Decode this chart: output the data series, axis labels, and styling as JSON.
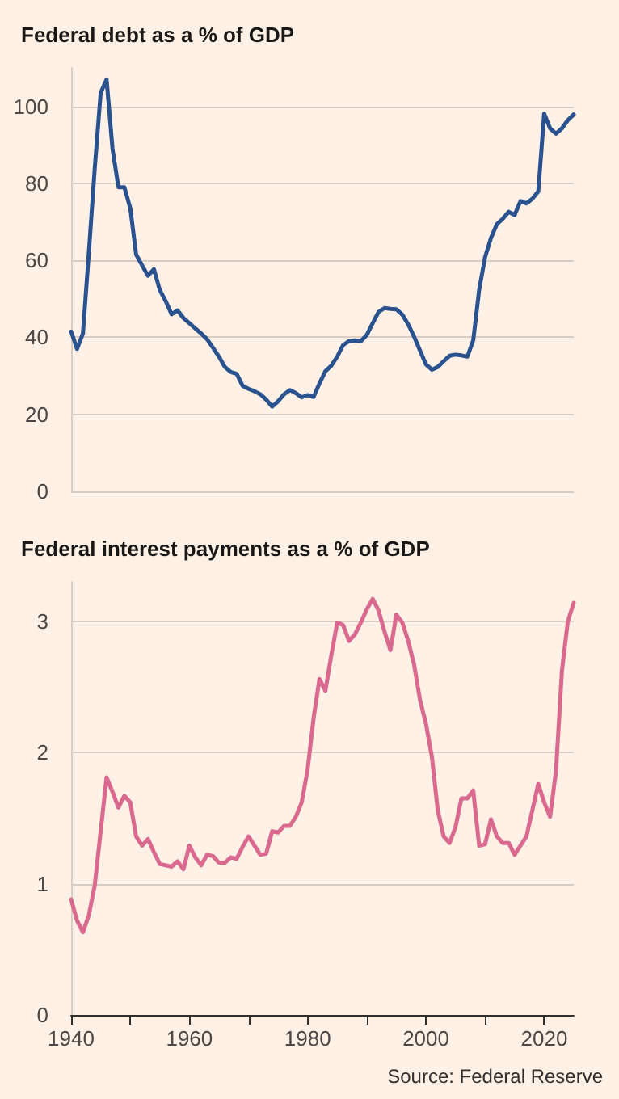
{
  "chart_data": [
    {
      "type": "line",
      "title": "Federal debt as a % of GDP",
      "xlim": [
        1940,
        2025
      ],
      "ylim": [
        0,
        110
      ],
      "yticks": [
        0,
        20,
        40,
        60,
        80,
        100
      ],
      "grid": "y",
      "tick_labels": "y",
      "x": [
        1940,
        1941,
        1942,
        1943,
        1944,
        1945,
        1946,
        1947,
        1948,
        1949,
        1950,
        1951,
        1952,
        1953,
        1954,
        1955,
        1956,
        1957,
        1958,
        1959,
        1960,
        1961,
        1962,
        1963,
        1964,
        1965,
        1966,
        1967,
        1968,
        1969,
        1970,
        1971,
        1972,
        1973,
        1974,
        1975,
        1976,
        1977,
        1978,
        1979,
        1980,
        1981,
        1982,
        1983,
        1984,
        1985,
        1986,
        1987,
        1988,
        1989,
        1990,
        1991,
        1992,
        1993,
        1994,
        1995,
        1996,
        1997,
        1998,
        1999,
        2000,
        2001,
        2002,
        2003,
        2004,
        2005,
        2006,
        2007,
        2008,
        2009,
        2010,
        2011,
        2012,
        2013,
        2014,
        2015,
        2016,
        2017,
        2018,
        2019,
        2020,
        2021,
        2022,
        2023,
        2024,
        2025
      ],
      "series": [
        {
          "color": "#2a528f",
          "values": [
            41.5,
            37,
            41,
            62,
            84,
            103.5,
            107,
            89,
            79,
            79,
            73.6,
            61.5,
            58.7,
            56,
            57.7,
            52.3,
            49.4,
            46,
            47,
            45,
            43.7,
            42.3,
            41,
            39.5,
            37.3,
            35,
            32.3,
            31,
            30.5,
            27.4,
            26.6,
            26,
            25.2,
            23.8,
            22,
            23.4,
            25.2,
            26.3,
            25.5,
            24.4,
            25,
            24.5,
            28,
            31.2,
            32.6,
            35,
            38,
            39,
            39.2,
            39,
            40.6,
            43.7,
            46.6,
            47.6,
            47.4,
            47.3,
            45.9,
            43.4,
            40.2,
            36.6,
            33,
            31.6,
            32.3,
            33.8,
            35.2,
            35.5,
            35.3,
            35,
            39.2,
            52.3,
            60.8,
            65.8,
            69.4,
            70.8,
            72.6,
            71.8,
            75.4,
            74.8,
            76,
            77.9,
            98.1,
            94.3,
            92.9,
            94.3,
            96.4,
            97.9
          ]
        }
      ]
    },
    {
      "type": "line",
      "title": "Federal interest payments as a % of GDP",
      "xlim": [
        1940,
        2025
      ],
      "xticks": [
        1940,
        {
          "value": 1950,
          "label": null
        },
        1960,
        {
          "value": 1970,
          "label": null
        },
        1980,
        {
          "value": 1990,
          "label": null
        },
        2000,
        {
          "value": 2010,
          "label": null
        },
        2020
      ],
      "ylim": [
        0,
        3.3
      ],
      "yticks": [
        0,
        1,
        2,
        3
      ],
      "grid": "y",
      "annotations": [
        "Source: Federal Reserve"
      ],
      "x": [
        1940,
        1941,
        1942,
        1943,
        1944,
        1945,
        1946,
        1947,
        1948,
        1949,
        1950,
        1951,
        1952,
        1953,
        1954,
        1955,
        1956,
        1957,
        1958,
        1959,
        1960,
        1961,
        1962,
        1963,
        1964,
        1965,
        1966,
        1967,
        1968,
        1969,
        1970,
        1971,
        1972,
        1973,
        1974,
        1975,
        1976,
        1977,
        1978,
        1979,
        1980,
        1981,
        1982,
        1983,
        1984,
        1985,
        1986,
        1987,
        1988,
        1989,
        1990,
        1991,
        1992,
        1993,
        1994,
        1995,
        1996,
        1997,
        1998,
        1999,
        2000,
        2001,
        2002,
        2003,
        2004,
        2005,
        2006,
        2007,
        2008,
        2009,
        2010,
        2011,
        2012,
        2013,
        2014,
        2015,
        2016,
        2017,
        2018,
        2019,
        2020,
        2021,
        2022,
        2023,
        2024,
        2025
      ],
      "series": [
        {
          "color": "#d9698f",
          "values": [
            0.88,
            0.72,
            0.63,
            0.76,
            0.99,
            1.4,
            1.81,
            1.7,
            1.58,
            1.67,
            1.62,
            1.36,
            1.29,
            1.34,
            1.24,
            1.15,
            1.14,
            1.13,
            1.17,
            1.11,
            1.29,
            1.2,
            1.14,
            1.22,
            1.21,
            1.16,
            1.16,
            1.2,
            1.19,
            1.28,
            1.36,
            1.29,
            1.22,
            1.23,
            1.4,
            1.39,
            1.44,
            1.44,
            1.51,
            1.62,
            1.87,
            2.26,
            2.56,
            2.47,
            2.74,
            2.99,
            2.97,
            2.85,
            2.9,
            2.99,
            3.09,
            3.17,
            3.08,
            2.92,
            2.78,
            3.05,
            2.99,
            2.85,
            2.67,
            2.4,
            2.22,
            1.97,
            1.56,
            1.36,
            1.31,
            1.43,
            1.65,
            1.65,
            1.71,
            1.29,
            1.3,
            1.49,
            1.36,
            1.31,
            1.31,
            1.22,
            1.29,
            1.36,
            1.56,
            1.76,
            1.62,
            1.51,
            1.86,
            2.62,
            3.0,
            3.14
          ]
        }
      ]
    }
  ]
}
